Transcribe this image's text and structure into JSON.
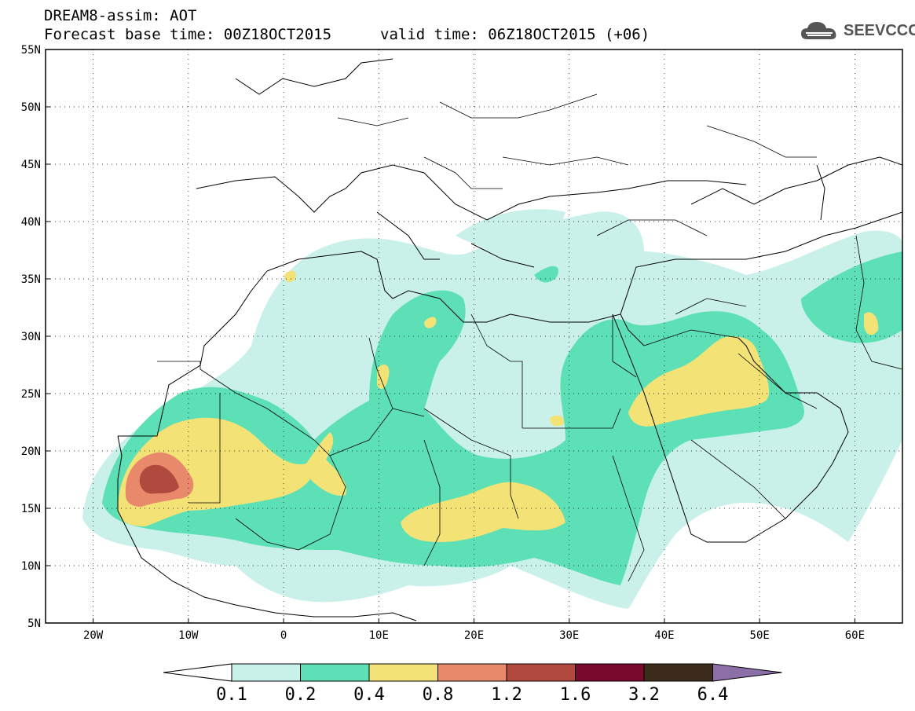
{
  "header": {
    "title": "DREAM8-assim: AOT",
    "base_time": "Forecast base time: 00Z18OCT2015",
    "valid_time": "valid time: 06Z18OCT2015 (+06)"
  },
  "logo": {
    "text": "SEEVCCC",
    "icon": "cloud-icon"
  },
  "map": {
    "projection": "lat-lon",
    "lon_range": [
      -25,
      65
    ],
    "lat_range": [
      5,
      55
    ],
    "lat_ticks": [
      "55N",
      "50N",
      "45N",
      "40N",
      "35N",
      "30N",
      "25N",
      "20N",
      "15N",
      "10N",
      "5N"
    ],
    "lon_ticks": [
      "20W",
      "10W",
      "0",
      "10E",
      "20E",
      "30E",
      "40E",
      "50E",
      "60E"
    ],
    "grid": "dotted"
  },
  "colorbar": {
    "labels": [
      "0.1",
      "0.2",
      "0.4",
      "0.8",
      "1.2",
      "1.6",
      "3.2",
      "6.4"
    ],
    "colors": [
      "#c9f1ea",
      "#5ee0b7",
      "#f3e276",
      "#e8896b",
      "#b04a3f",
      "#7a0a2c",
      "#3c2a1b",
      "#8d6fa8"
    ],
    "under_color": "#ffffff",
    "over_color": "#8d6fa8"
  }
}
